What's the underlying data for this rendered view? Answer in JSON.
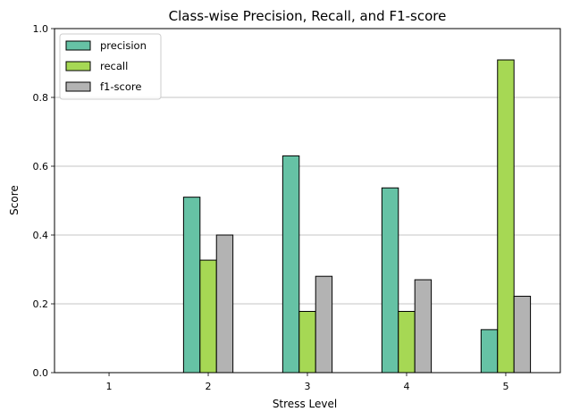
{
  "chart_data": {
    "type": "bar",
    "title": "Class-wise Precision, Recall, and F1-score",
    "xlabel": "Stress Level",
    "ylabel": "Score",
    "ylim": [
      0,
      1.0
    ],
    "yticks": [
      0.0,
      0.2,
      0.4,
      0.6,
      0.8,
      1.0
    ],
    "ytick_labels": [
      "0.0",
      "0.2",
      "0.4",
      "0.6",
      "0.8",
      "1.0"
    ],
    "categories": [
      "1",
      "2",
      "3",
      "4",
      "5"
    ],
    "grid": "y",
    "legend_position": "top-left",
    "series": [
      {
        "name": "precision",
        "color": "#66c2a5",
        "values": [
          0.0,
          0.51,
          0.63,
          0.537,
          0.125
        ]
      },
      {
        "name": "recall",
        "color": "#a6d854",
        "values": [
          0.0,
          0.327,
          0.178,
          0.178,
          0.909
        ]
      },
      {
        "name": "f1-score",
        "color": "#b3b3b3",
        "values": [
          0.0,
          0.4,
          0.28,
          0.27,
          0.222
        ]
      }
    ]
  }
}
